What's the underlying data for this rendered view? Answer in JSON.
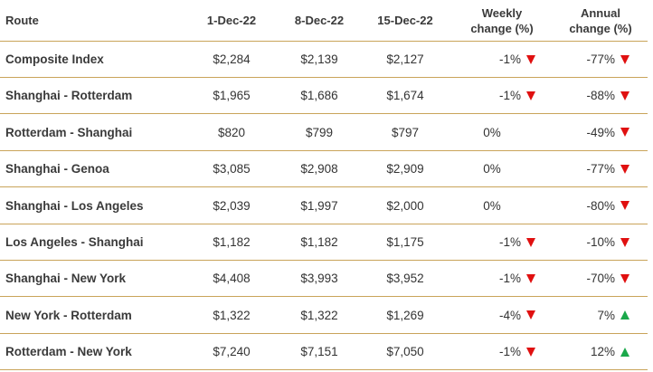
{
  "header": {
    "route": "Route",
    "d1": "1-Dec-22",
    "d2": "8-Dec-22",
    "d3": "15-Dec-22",
    "weekly_line1": "Weekly",
    "weekly_line2": "change (%)",
    "annual_line1": "Annual",
    "annual_line2": "change (%)"
  },
  "colors": {
    "border": "#c9a45a",
    "down_arrow": "#e01010",
    "up_arrow": "#1aa84a"
  },
  "rows": [
    {
      "route": "Composite Index",
      "d1": "$2,284",
      "d2": "$2,139",
      "d3": "$2,127",
      "weekly": "-1%",
      "weekly_dir": "down",
      "annual": "-77%",
      "annual_dir": "down"
    },
    {
      "route": "Shanghai - Rotterdam",
      "d1": "$1,965",
      "d2": "$1,686",
      "d3": "$1,674",
      "weekly": "-1%",
      "weekly_dir": "down",
      "annual": "-88%",
      "annual_dir": "down"
    },
    {
      "route": "Rotterdam - Shanghai",
      "d1": "$820",
      "d2": "$799",
      "d3": "$797",
      "weekly": "0%",
      "weekly_dir": "none",
      "annual": "-49%",
      "annual_dir": "down"
    },
    {
      "route": "Shanghai - Genoa",
      "d1": "$3,085",
      "d2": "$2,908",
      "d3": "$2,909",
      "weekly": "0%",
      "weekly_dir": "none",
      "annual": "-77%",
      "annual_dir": "down"
    },
    {
      "route": "Shanghai - Los Angeles",
      "d1": "$2,039",
      "d2": "$1,997",
      "d3": "$2,000",
      "weekly": "0%",
      "weekly_dir": "none",
      "annual": "-80%",
      "annual_dir": "down"
    },
    {
      "route": "Los Angeles - Shanghai",
      "d1": "$1,182",
      "d2": "$1,182",
      "d3": "$1,175",
      "weekly": "-1%",
      "weekly_dir": "down",
      "annual": "-10%",
      "annual_dir": "down"
    },
    {
      "route": "Shanghai - New York",
      "d1": "$4,408",
      "d2": "$3,993",
      "d3": "$3,952",
      "weekly": "-1%",
      "weekly_dir": "down",
      "annual": "-70%",
      "annual_dir": "down"
    },
    {
      "route": "New York - Rotterdam",
      "d1": "$1,322",
      "d2": "$1,322",
      "d3": "$1,269",
      "weekly": "-4%",
      "weekly_dir": "down",
      "annual": "7%",
      "annual_dir": "up"
    },
    {
      "route": "Rotterdam - New York",
      "d1": "$7,240",
      "d2": "$7,151",
      "d3": "$7,050",
      "weekly": "-1%",
      "weekly_dir": "down",
      "annual": "12%",
      "annual_dir": "up"
    }
  ]
}
